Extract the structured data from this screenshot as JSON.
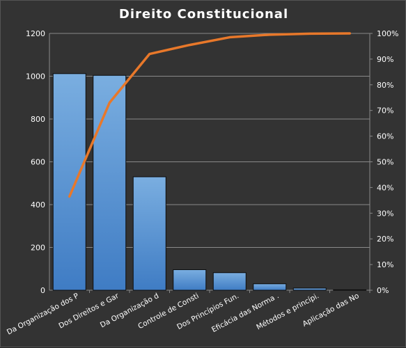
{
  "chart_data": {
    "type": "bar",
    "title": "Direito  Constitucional",
    "categories": [
      "Da Organização dos P",
      "Dos Direitos e Gar",
      "Da Organização d",
      "Controle de Consti",
      "Dos Princípios Fun.",
      "Eficácia das Norma .",
      "Métodos e princípi.",
      "Aplicação das No"
    ],
    "series": [
      {
        "type": "bar",
        "axis": "left",
        "values": [
          1012,
          1004,
          530,
          96,
          82,
          30,
          10,
          2
        ]
      },
      {
        "type": "line",
        "axis": "right",
        "values": [
          36.5,
          73,
          92,
          95.5,
          98.5,
          99.5,
          99.9,
          100
        ]
      }
    ],
    "ylim": [
      0,
      1200
    ],
    "yticks": [
      "0",
      "200",
      "400",
      "600",
      "800",
      "1000",
      "1200"
    ],
    "y2lim": [
      0,
      100
    ],
    "y2ticks": [
      "0%",
      "10%",
      "20%",
      "30%",
      "40%",
      "50%",
      "60%",
      "70%",
      "80%",
      "90%",
      "100%"
    ],
    "grid": true,
    "colors": {
      "bar_top": "#7aaee0",
      "bar_bottom": "#3f7cc4",
      "line": "#e8782a",
      "grid": "#8a8a8a",
      "text": "#ffffff"
    }
  }
}
